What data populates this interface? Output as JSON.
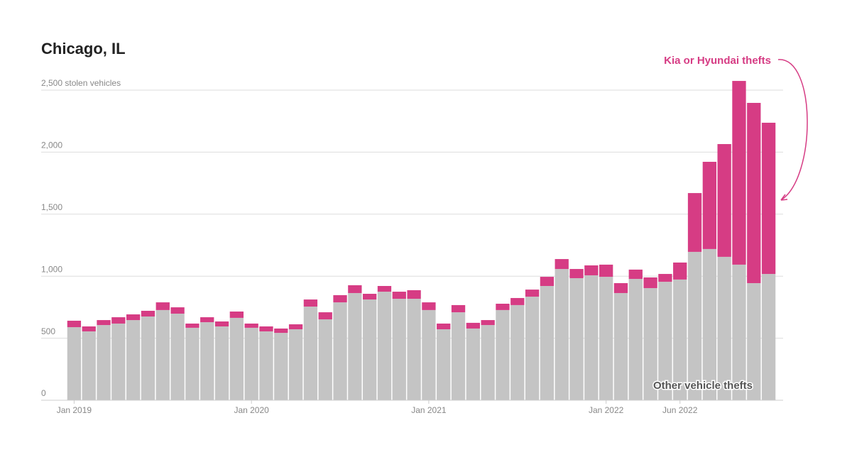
{
  "chart_data": {
    "type": "stacked_bar",
    "title": "Chicago, IL",
    "categories": [
      "Jan 2019",
      null,
      null,
      null,
      null,
      null,
      null,
      null,
      null,
      null,
      null,
      null,
      "Jan 2020",
      null,
      null,
      null,
      null,
      null,
      null,
      null,
      null,
      null,
      null,
      null,
      "Jan 2021",
      null,
      null,
      null,
      null,
      null,
      null,
      null,
      null,
      null,
      null,
      null,
      "Jan 2022",
      null,
      null,
      null,
      null,
      "Jun 2022",
      null,
      null,
      null,
      null,
      null,
      null
    ],
    "series": [
      {
        "name": "Other vehicle thefts",
        "color": "#c4c4c4",
        "values": [
          589,
          555,
          606,
          618,
          646,
          675,
          727,
          698,
          584,
          629,
          595,
          664,
          584,
          555,
          543,
          572,
          755,
          652,
          789,
          864,
          812,
          875,
          818,
          818,
          727,
          572,
          709,
          578,
          606,
          727,
          767,
          835,
          921,
          1058,
          984,
          1007,
          995,
          864,
          978,
          904,
          955,
          973,
          1196,
          1219,
          1156,
          1093,
          944,
          1018
        ]
      },
      {
        "name": "Kia or Hyundai thefts",
        "color": "#d63c84",
        "values": [
          52,
          40,
          40,
          51,
          46,
          46,
          62,
          51,
          34,
          40,
          40,
          51,
          34,
          40,
          35,
          40,
          57,
          57,
          58,
          63,
          46,
          46,
          57,
          69,
          62,
          46,
          58,
          46,
          40,
          51,
          57,
          57,
          74,
          80,
          74,
          80,
          98,
          80,
          75,
          86,
          63,
          137,
          474,
          703,
          909,
          1481,
          1453,
          1219
        ]
      }
    ],
    "ylim": [
      0,
      2600
    ],
    "yticks": [
      0,
      500,
      {
        "value": 1000,
        "label": "1,000"
      },
      {
        "value": 1500,
        "label": "1,500"
      },
      {
        "value": 2000,
        "label": "2,000"
      },
      {
        "value": 2500,
        "label": "2,500 stolen vehicles"
      }
    ],
    "grid": true
  }
}
